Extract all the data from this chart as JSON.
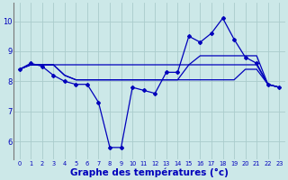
{
  "x": [
    0,
    1,
    2,
    3,
    4,
    5,
    6,
    7,
    8,
    9,
    10,
    11,
    12,
    13,
    14,
    15,
    16,
    17,
    18,
    19,
    20,
    21,
    22,
    23
  ],
  "temp_curve": [
    8.4,
    8.6,
    8.5,
    8.2,
    8.0,
    7.9,
    7.9,
    7.3,
    5.8,
    5.8,
    7.8,
    7.7,
    7.6,
    8.3,
    8.3,
    9.5,
    9.3,
    9.6,
    10.1,
    9.4,
    8.8,
    8.6,
    7.9,
    7.8
  ],
  "flat1": [
    8.4,
    8.55,
    8.55,
    8.55,
    8.55,
    8.55,
    8.55,
    8.55,
    8.55,
    8.55,
    8.55,
    8.55,
    8.55,
    8.55,
    8.55,
    8.55,
    8.85,
    8.85,
    8.85,
    8.85,
    8.85,
    8.85,
    7.9,
    7.8
  ],
  "flat2": [
    8.4,
    8.55,
    8.55,
    8.55,
    8.2,
    8.05,
    8.05,
    8.05,
    8.05,
    8.05,
    8.05,
    8.05,
    8.05,
    8.05,
    8.05,
    8.55,
    8.55,
    8.55,
    8.55,
    8.55,
    8.55,
    8.55,
    7.9,
    7.8
  ],
  "flat3": [
    8.4,
    8.55,
    8.55,
    8.55,
    8.2,
    8.05,
    8.05,
    8.05,
    8.05,
    8.05,
    8.05,
    8.05,
    8.05,
    8.05,
    8.05,
    8.05,
    8.05,
    8.05,
    8.05,
    8.05,
    8.4,
    8.4,
    7.9,
    7.8
  ],
  "background_color": "#cce8e8",
  "grid_color": "#aacccc",
  "line_color": "#0000bb",
  "xlabel": "Graphe des températures (°c)",
  "ylabel_ticks": [
    6,
    7,
    8,
    9,
    10
  ],
  "ylim": [
    5.4,
    10.6
  ],
  "xlim": [
    -0.5,
    23.5
  ]
}
